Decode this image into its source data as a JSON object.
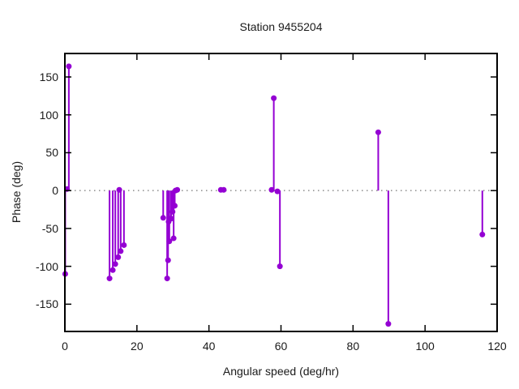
{
  "chart_data": {
    "type": "scatter",
    "style": "impulses+points",
    "title": "Station 9455204",
    "xlabel": "Angular speed (deg/hr)",
    "ylabel": "Phase (deg)",
    "xlim": [
      0,
      120
    ],
    "ylim": [
      -186,
      181
    ],
    "x_ticks": [
      0,
      20,
      40,
      60,
      80,
      100,
      120
    ],
    "y_ticks": [
      -150,
      -100,
      -50,
      0,
      50,
      100,
      150
    ],
    "grid": false,
    "zero_line": true,
    "legend": "none",
    "series": [
      {
        "name": "phase",
        "color": "#9400D3",
        "points": [
          [
            0.1,
            -110
          ],
          [
            0.6,
            2
          ],
          [
            1.1,
            164
          ],
          [
            12.4,
            -116
          ],
          [
            13.3,
            -105
          ],
          [
            14.0,
            -97
          ],
          [
            14.8,
            -88
          ],
          [
            15.1,
            1
          ],
          [
            15.5,
            -80
          ],
          [
            16.4,
            -72
          ],
          [
            27.3,
            -36
          ],
          [
            28.4,
            -116
          ],
          [
            28.65,
            -92
          ],
          [
            28.8,
            -41
          ],
          [
            29.0,
            -67
          ],
          [
            29.5,
            -37
          ],
          [
            29.9,
            -28
          ],
          [
            30.2,
            -63
          ],
          [
            30.5,
            -20
          ],
          [
            30.7,
            0
          ],
          [
            31.2,
            1
          ],
          [
            43.3,
            1
          ],
          [
            44.1,
            1
          ],
          [
            57.4,
            1
          ],
          [
            58.0,
            122
          ],
          [
            59.0,
            -1
          ],
          [
            59.7,
            -100
          ],
          [
            87.0,
            77
          ],
          [
            89.8,
            -176
          ],
          [
            115.9,
            -58
          ]
        ]
      }
    ],
    "axis_color": "#000000",
    "zero_line_color": "#8c8c8c",
    "text_color": "#1a1a1a"
  }
}
